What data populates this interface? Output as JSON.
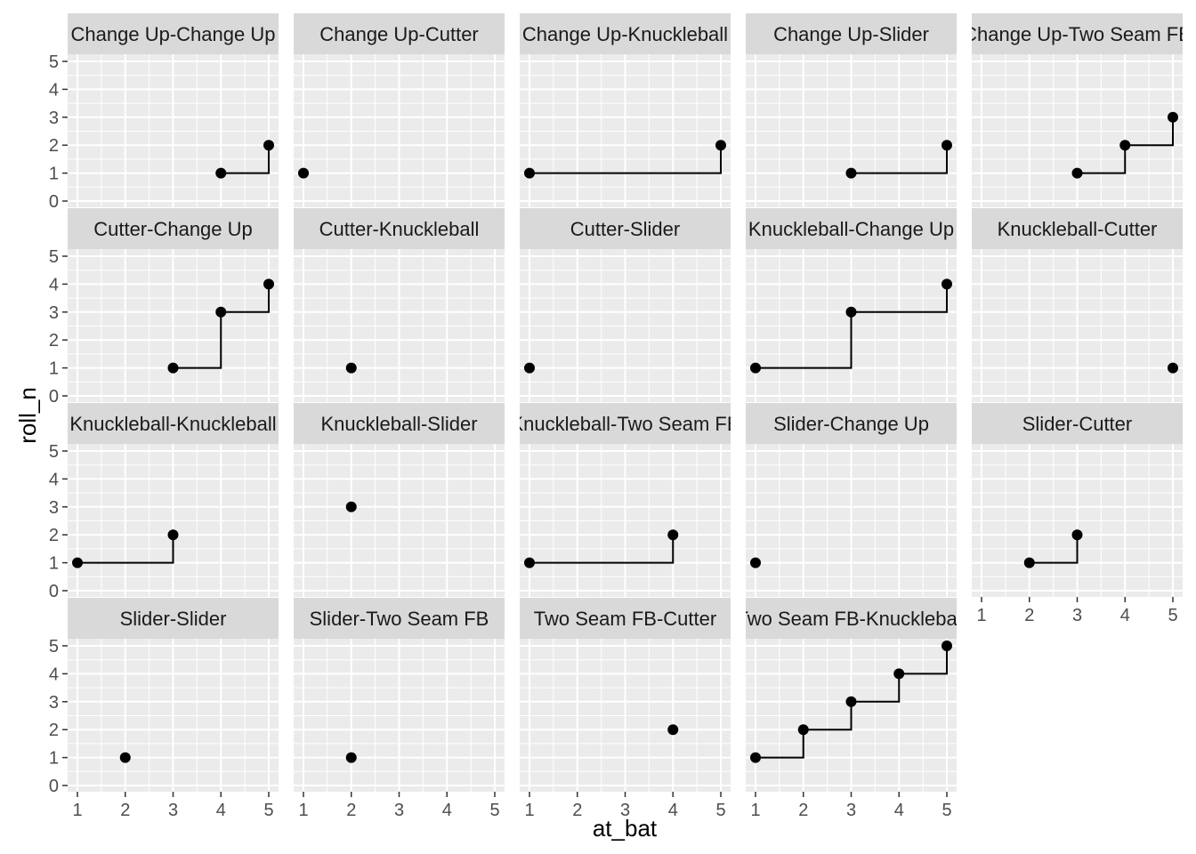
{
  "chart_data": {
    "type": "line",
    "subtype": "step-with-points",
    "facet_layout": {
      "rows": 4,
      "cols": 5
    },
    "xlabel": "at_bat",
    "ylabel": "roll_n",
    "xlim": [
      1,
      5
    ],
    "ylim": [
      0,
      5
    ],
    "x_ticks": [
      1,
      2,
      3,
      4,
      5
    ],
    "y_ticks": [
      0,
      1,
      2,
      3,
      4,
      5
    ],
    "grid": true,
    "colors": {
      "panel_background": "#ebebeb",
      "grid_line": "#ffffff",
      "strip_background": "#d9d9d9",
      "series": "#000000"
    },
    "facets": [
      {
        "label": "Change Up-Change Up",
        "x": [
          4,
          5
        ],
        "y": [
          1,
          2
        ]
      },
      {
        "label": "Change Up-Cutter",
        "x": [
          1
        ],
        "y": [
          1
        ]
      },
      {
        "label": "Change Up-Knuckleball",
        "x": [
          1,
          5
        ],
        "y": [
          1,
          2
        ]
      },
      {
        "label": "Change Up-Slider",
        "x": [
          3,
          5
        ],
        "y": [
          1,
          2
        ]
      },
      {
        "label": "Change Up-Two Seam FB",
        "x": [
          3,
          4,
          5
        ],
        "y": [
          1,
          2,
          3
        ]
      },
      {
        "label": "Cutter-Change Up",
        "x": [
          3,
          4,
          5
        ],
        "y": [
          1,
          3,
          4
        ]
      },
      {
        "label": "Cutter-Knuckleball",
        "x": [
          2
        ],
        "y": [
          1
        ]
      },
      {
        "label": "Cutter-Slider",
        "x": [
          1
        ],
        "y": [
          1
        ]
      },
      {
        "label": "Knuckleball-Change Up",
        "x": [
          1,
          3,
          5
        ],
        "y": [
          1,
          3,
          4
        ]
      },
      {
        "label": "Knuckleball-Cutter",
        "x": [
          5
        ],
        "y": [
          1
        ]
      },
      {
        "label": "Knuckleball-Knuckleball",
        "x": [
          1,
          3
        ],
        "y": [
          1,
          2
        ]
      },
      {
        "label": "Knuckleball-Slider",
        "x": [
          2
        ],
        "y": [
          3
        ]
      },
      {
        "label": "Knuckleball-Two Seam FB",
        "x": [
          1,
          4
        ],
        "y": [
          1,
          2
        ]
      },
      {
        "label": "Slider-Change Up",
        "x": [
          1
        ],
        "y": [
          1
        ]
      },
      {
        "label": "Slider-Cutter",
        "x": [
          2,
          3
        ],
        "y": [
          1,
          2
        ]
      },
      {
        "label": "Slider-Slider",
        "x": [
          2
        ],
        "y": [
          1
        ]
      },
      {
        "label": "Slider-Two Seam FB",
        "x": [
          2
        ],
        "y": [
          1
        ]
      },
      {
        "label": "Two Seam FB-Cutter",
        "x": [
          4
        ],
        "y": [
          2
        ]
      },
      {
        "label": "Two Seam FB-Knuckleball",
        "x": [
          1,
          2,
          3,
          4,
          5
        ],
        "y": [
          1,
          2,
          3,
          4,
          5
        ]
      }
    ]
  }
}
